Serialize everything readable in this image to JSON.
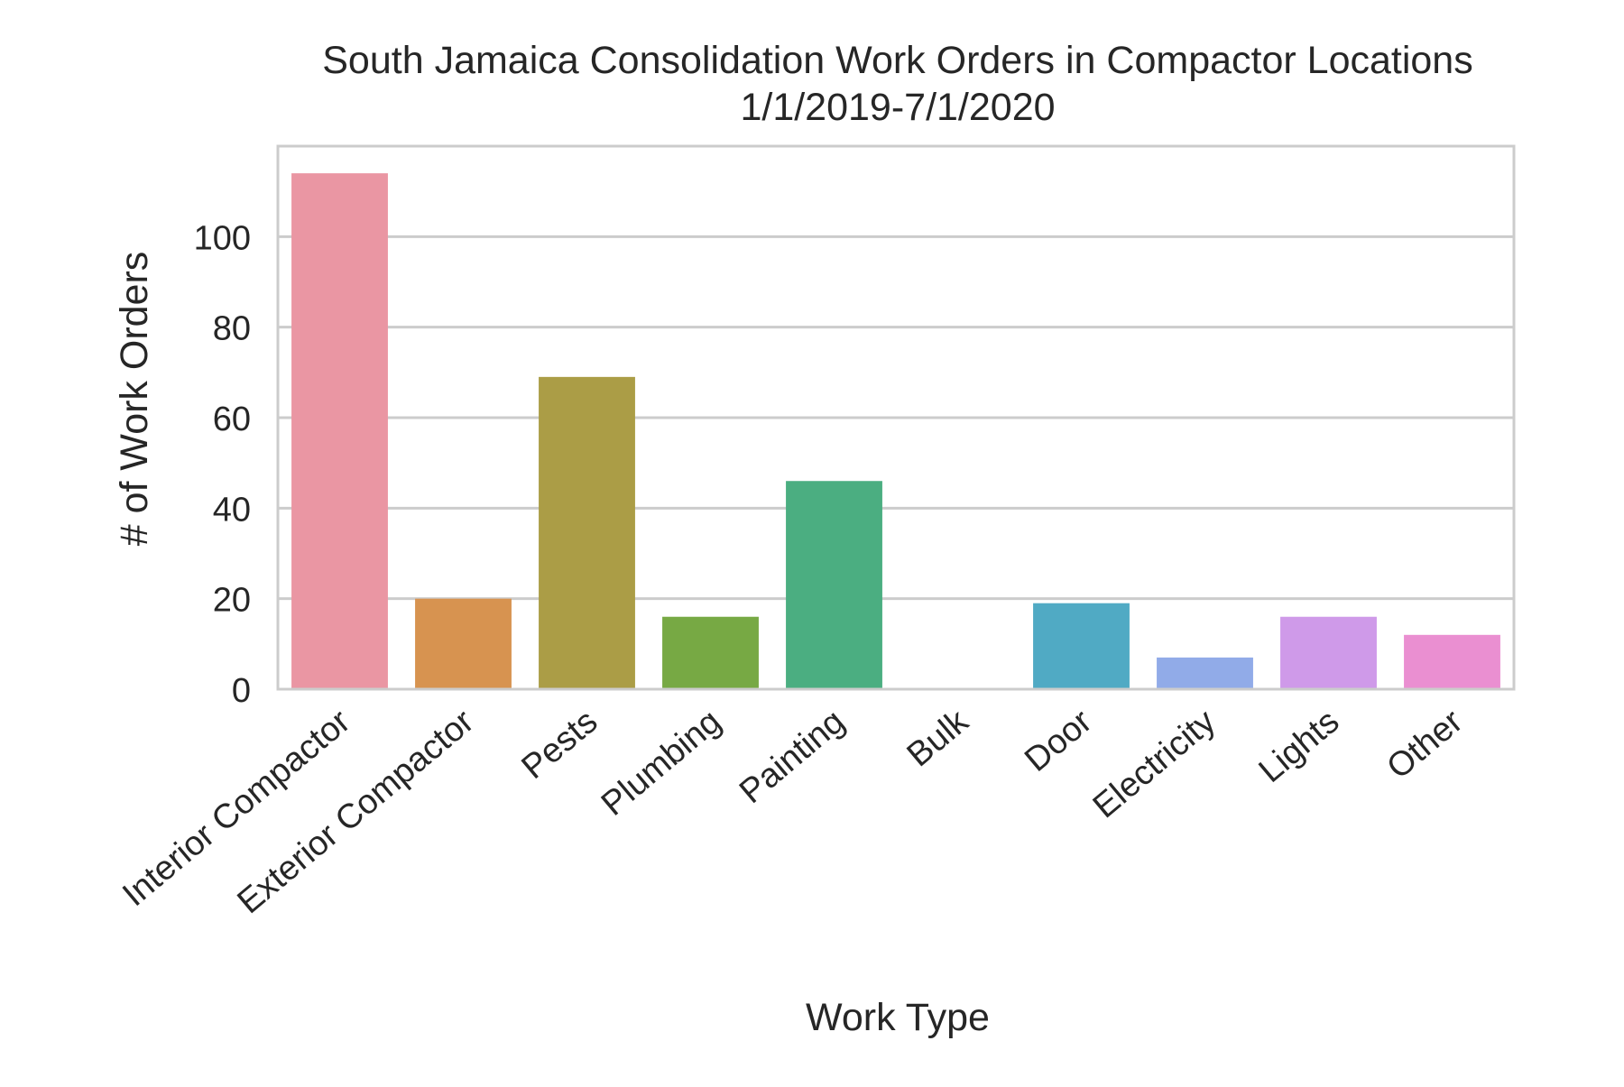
{
  "chart_data": {
    "type": "bar",
    "title": "South Jamaica Consolidation Work Orders in Compactor Locations",
    "subtitle": "1/1/2019-7/1/2020",
    "xlabel": "Work Type",
    "ylabel": "# of Work Orders",
    "categories": [
      "Interior Compactor",
      "Exterior Compactor",
      "Pests",
      "Plumbing",
      "Painting",
      "Bulk",
      "Door",
      "Electricity",
      "Lights",
      "Other"
    ],
    "values": [
      114,
      20,
      69,
      16,
      46,
      0,
      19,
      7,
      16,
      12
    ],
    "colors": [
      "#ea96a3",
      "#d79350",
      "#ab9d46",
      "#77a944",
      "#4bae81",
      "#4eae99",
      "#50aac4",
      "#91abe8",
      "#cf9ae9",
      "#ea8fd1"
    ],
    "ylim": [
      0,
      120
    ],
    "yticks": [
      0,
      20,
      40,
      60,
      80,
      100
    ],
    "grid": true,
    "grid_color": "#cccccc",
    "frame_color": "#cccccc"
  }
}
